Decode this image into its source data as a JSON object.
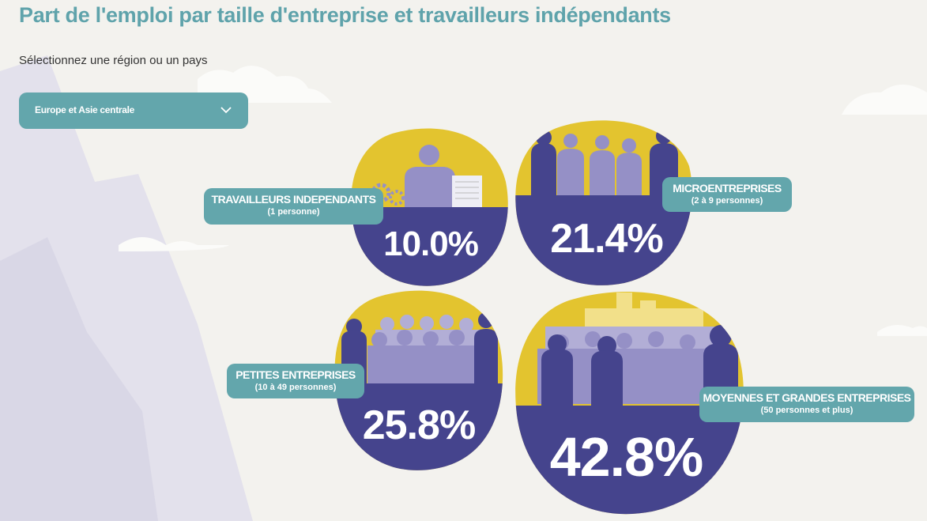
{
  "page": {
    "title": "Part de l'emploi par taille d'entreprise et travailleurs indépendants",
    "subtitle": "Sélectionnez une région ou un pays"
  },
  "selector": {
    "value": "Europe et Asie centrale"
  },
  "colors": {
    "accent": "#63a6ac",
    "title": "#5fa3ab",
    "bubble_bottom": "#45448d",
    "bubble_top": "#e3c42f",
    "silhouette": "#9590c6"
  },
  "categories": [
    {
      "label": "TRAVAILLEURS INDEPENDANTS",
      "sublabel": "(1 personne)",
      "value": "10.0%"
    },
    {
      "label": "MICROENTREPRISES",
      "sublabel": "(2 à 9 personnes)",
      "value": "21.4%"
    },
    {
      "label": "PETITES ENTREPRISES",
      "sublabel": "(10 à 49 personnes)",
      "value": "25.8%"
    },
    {
      "label": "MOYENNES ET GRANDES ENTREPRISES",
      "sublabel": "(50 personnes et plus)",
      "value": "42.8%"
    }
  ]
}
